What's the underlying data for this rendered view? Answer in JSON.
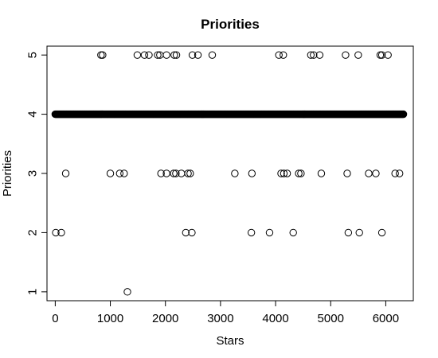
{
  "chart_data": {
    "type": "scatter",
    "title": "Priorities",
    "xlabel": "Stars",
    "ylabel": "Priorities",
    "xlim": [
      -150,
      6500
    ],
    "ylim": [
      0.85,
      5.15
    ],
    "x_ticks": [
      0,
      1000,
      2000,
      3000,
      4000,
      5000,
      6000
    ],
    "y_ticks": [
      1,
      2,
      3,
      4,
      5
    ],
    "grid": false,
    "legend": "none",
    "marker": "open-circle",
    "dense_band": {
      "y": 4,
      "x_start": 0,
      "x_end": 6320,
      "step": 10
    },
    "points": [
      {
        "x": 830,
        "y": 5
      },
      {
        "x": 860,
        "y": 5
      },
      {
        "x": 1490,
        "y": 5
      },
      {
        "x": 1620,
        "y": 5
      },
      {
        "x": 1700,
        "y": 5
      },
      {
        "x": 1860,
        "y": 5
      },
      {
        "x": 1900,
        "y": 5
      },
      {
        "x": 2020,
        "y": 5
      },
      {
        "x": 2160,
        "y": 5
      },
      {
        "x": 2200,
        "y": 5
      },
      {
        "x": 2490,
        "y": 5
      },
      {
        "x": 2590,
        "y": 5
      },
      {
        "x": 2850,
        "y": 5
      },
      {
        "x": 4060,
        "y": 5
      },
      {
        "x": 4140,
        "y": 5
      },
      {
        "x": 4640,
        "y": 5
      },
      {
        "x": 4690,
        "y": 5
      },
      {
        "x": 4800,
        "y": 5
      },
      {
        "x": 5270,
        "y": 5
      },
      {
        "x": 5500,
        "y": 5
      },
      {
        "x": 5900,
        "y": 5
      },
      {
        "x": 5930,
        "y": 5
      },
      {
        "x": 6040,
        "y": 5
      },
      {
        "x": 190,
        "y": 3
      },
      {
        "x": 1000,
        "y": 3
      },
      {
        "x": 1170,
        "y": 3
      },
      {
        "x": 1250,
        "y": 3
      },
      {
        "x": 1920,
        "y": 3
      },
      {
        "x": 2020,
        "y": 3
      },
      {
        "x": 2150,
        "y": 3
      },
      {
        "x": 2190,
        "y": 3
      },
      {
        "x": 2290,
        "y": 3
      },
      {
        "x": 2410,
        "y": 3
      },
      {
        "x": 2450,
        "y": 3
      },
      {
        "x": 3260,
        "y": 3
      },
      {
        "x": 3570,
        "y": 3
      },
      {
        "x": 4100,
        "y": 3
      },
      {
        "x": 4150,
        "y": 3
      },
      {
        "x": 4210,
        "y": 3
      },
      {
        "x": 4420,
        "y": 3
      },
      {
        "x": 4460,
        "y": 3
      },
      {
        "x": 4830,
        "y": 3
      },
      {
        "x": 5300,
        "y": 3
      },
      {
        "x": 5690,
        "y": 3
      },
      {
        "x": 5820,
        "y": 3
      },
      {
        "x": 6170,
        "y": 3
      },
      {
        "x": 6250,
        "y": 3
      },
      {
        "x": 10,
        "y": 2
      },
      {
        "x": 110,
        "y": 2
      },
      {
        "x": 2370,
        "y": 2
      },
      {
        "x": 2480,
        "y": 2
      },
      {
        "x": 3560,
        "y": 2
      },
      {
        "x": 3890,
        "y": 2
      },
      {
        "x": 4320,
        "y": 2
      },
      {
        "x": 5320,
        "y": 2
      },
      {
        "x": 5520,
        "y": 2
      },
      {
        "x": 5930,
        "y": 2
      },
      {
        "x": 1310,
        "y": 1
      }
    ]
  }
}
